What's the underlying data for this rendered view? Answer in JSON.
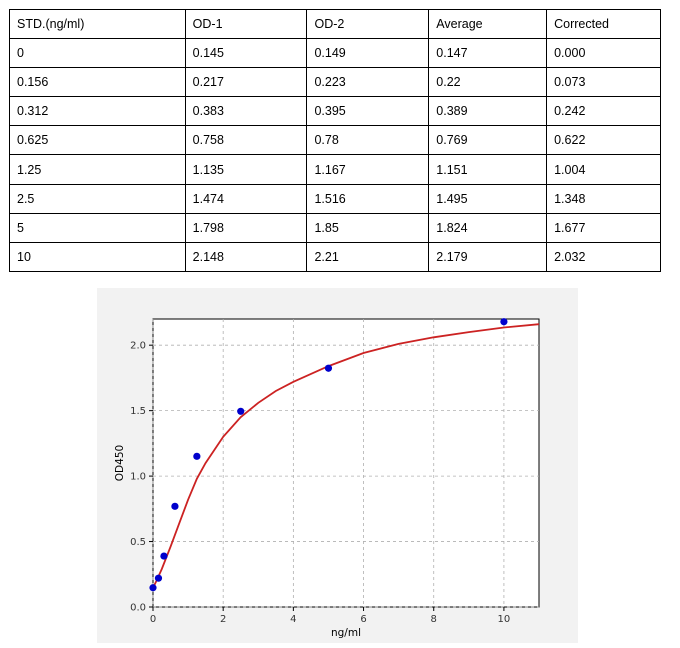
{
  "table": {
    "headers": [
      "STD.(ng/ml)",
      "OD-1",
      "OD-2",
      "Average",
      "Corrected"
    ],
    "rows": [
      [
        "0",
        "0.145",
        "0.149",
        "0.147",
        "0.000"
      ],
      [
        "0.156",
        "0.217",
        "0.223",
        "0.22",
        "0.073"
      ],
      [
        "0.312",
        "0.383",
        "0.395",
        "0.389",
        "0.242"
      ],
      [
        "0.625",
        "0.758",
        "0.78",
        "0.769",
        "0.622"
      ],
      [
        "1.25",
        "1.135",
        "1.167",
        "1.151",
        "1.004"
      ],
      [
        "2.5",
        "1.474",
        "1.516",
        "1.495",
        "1.348"
      ],
      [
        "5",
        "1.798",
        "1.85",
        "1.824",
        "1.677"
      ],
      [
        "10",
        "2.148",
        "2.21",
        "2.179",
        "2.032"
      ]
    ]
  },
  "chart_data": {
    "type": "scatter",
    "xlabel": "ng/ml",
    "ylabel": "OD450",
    "xlim": [
      0,
      11
    ],
    "ylim": [
      0,
      2.2
    ],
    "xticks": [
      0,
      2,
      4,
      6,
      8,
      10
    ],
    "yticks": [
      0.0,
      0.5,
      1.0,
      1.5,
      2.0
    ],
    "grid": true,
    "points": {
      "x": [
        0,
        0.156,
        0.312,
        0.625,
        1.25,
        2.5,
        5,
        10
      ],
      "y": [
        0.147,
        0.22,
        0.389,
        0.769,
        1.151,
        1.495,
        1.824,
        2.179
      ]
    },
    "fit_curve": {
      "x": [
        0,
        0.1,
        0.25,
        0.5,
        0.75,
        1,
        1.25,
        1.5,
        2,
        2.5,
        3,
        3.5,
        4,
        5,
        6,
        7,
        8,
        9,
        10,
        11
      ],
      "y": [
        0.147,
        0.2,
        0.29,
        0.46,
        0.64,
        0.82,
        0.98,
        1.1,
        1.3,
        1.45,
        1.56,
        1.65,
        1.72,
        1.84,
        1.94,
        2.01,
        2.06,
        2.1,
        2.135,
        2.16
      ]
    },
    "colors": {
      "points": "#0000cc",
      "curve": "#cc2222",
      "grid": "#b0b0b0"
    }
  }
}
